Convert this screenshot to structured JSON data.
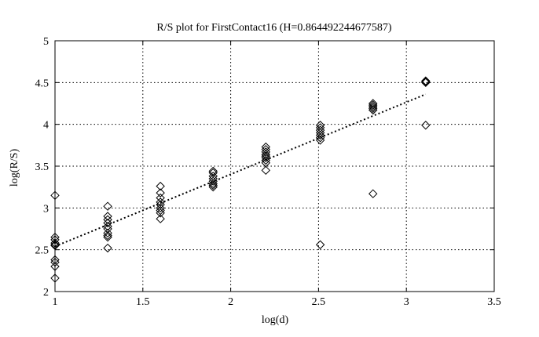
{
  "chart_data": {
    "type": "scatter",
    "title": "R/S plot for FirstContact16 (H=0.864492244677587)",
    "xlabel": "log(d)",
    "ylabel": "log(R/S)",
    "xlim": [
      1,
      3.5
    ],
    "ylim": [
      2,
      5
    ],
    "xticks": [
      "1",
      "1.5",
      "2",
      "2.5",
      "3",
      "3.5"
    ],
    "yticks": [
      "2",
      "2.5",
      "3",
      "3.5",
      "4",
      "4.5",
      "5"
    ],
    "grid": true,
    "series": [
      {
        "marker": "diamond",
        "color": "#000000",
        "points": [
          [
            1.0,
            3.15
          ],
          [
            1.0,
            2.65
          ],
          [
            1.0,
            2.62
          ],
          [
            1.0,
            2.58
          ],
          [
            1.0,
            2.56
          ],
          [
            1.0,
            2.55
          ],
          [
            1.0,
            2.38
          ],
          [
            1.0,
            2.35
          ],
          [
            1.0,
            2.3
          ],
          [
            1.0,
            2.16
          ],
          [
            1.3,
            3.02
          ],
          [
            1.3,
            2.9
          ],
          [
            1.3,
            2.86
          ],
          [
            1.3,
            2.82
          ],
          [
            1.3,
            2.78
          ],
          [
            1.3,
            2.75
          ],
          [
            1.3,
            2.7
          ],
          [
            1.3,
            2.67
          ],
          [
            1.3,
            2.65
          ],
          [
            1.3,
            2.52
          ],
          [
            1.6,
            3.26
          ],
          [
            1.6,
            3.18
          ],
          [
            1.6,
            3.12
          ],
          [
            1.6,
            3.07
          ],
          [
            1.6,
            3.04
          ],
          [
            1.6,
            3.0
          ],
          [
            1.6,
            2.97
          ],
          [
            1.6,
            2.94
          ],
          [
            1.6,
            2.87
          ],
          [
            1.9,
            3.44
          ],
          [
            1.9,
            3.42
          ],
          [
            1.9,
            3.38
          ],
          [
            1.9,
            3.35
          ],
          [
            1.9,
            3.32
          ],
          [
            1.9,
            3.29
          ],
          [
            1.9,
            3.27
          ],
          [
            1.9,
            3.25
          ],
          [
            2.2,
            3.73
          ],
          [
            2.2,
            3.7
          ],
          [
            2.2,
            3.67
          ],
          [
            2.2,
            3.64
          ],
          [
            2.2,
            3.62
          ],
          [
            2.2,
            3.6
          ],
          [
            2.2,
            3.57
          ],
          [
            2.2,
            3.54
          ],
          [
            2.2,
            3.45
          ],
          [
            2.51,
            3.99
          ],
          [
            2.51,
            3.96
          ],
          [
            2.51,
            3.93
          ],
          [
            2.51,
            3.9
          ],
          [
            2.51,
            3.87
          ],
          [
            2.51,
            3.84
          ],
          [
            2.51,
            3.81
          ],
          [
            2.51,
            2.56
          ],
          [
            2.81,
            4.25
          ],
          [
            2.81,
            4.23
          ],
          [
            2.81,
            4.21
          ],
          [
            2.81,
            4.19
          ],
          [
            2.81,
            4.17
          ],
          [
            2.81,
            3.17
          ],
          [
            3.11,
            4.52
          ],
          [
            3.11,
            4.51
          ],
          [
            3.11,
            4.5
          ],
          [
            3.11,
            3.99
          ]
        ]
      }
    ],
    "fit_line": {
      "style": "dotted",
      "x": [
        1.0,
        3.11
      ],
      "y": [
        2.54,
        4.36
      ]
    }
  }
}
